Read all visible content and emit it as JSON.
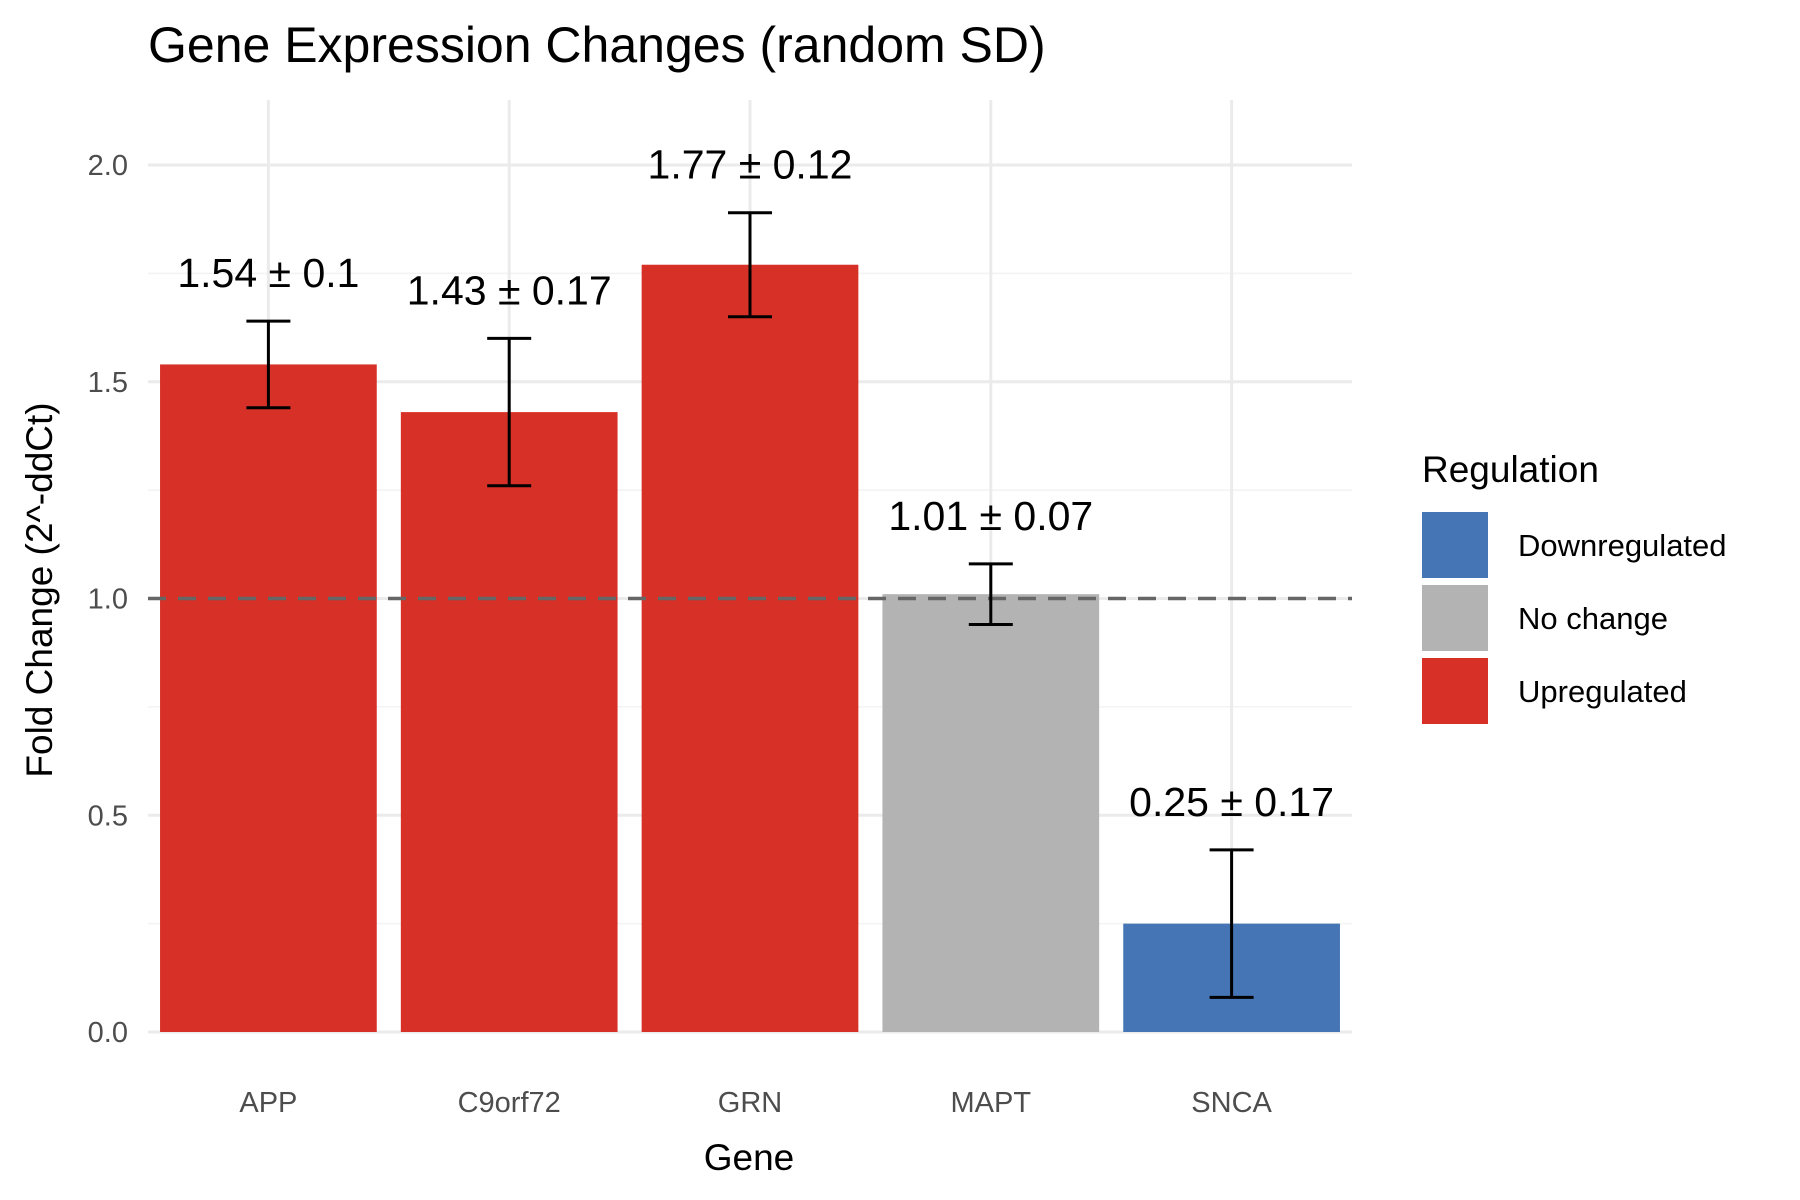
{
  "chart_data": {
    "type": "bar",
    "title": "Gene Expression Changes (random SD)",
    "xlabel": "Gene",
    "ylabel": "Fold Change (2^-ddCt)",
    "ylim": [
      0,
      2.15
    ],
    "yticks": [
      0.0,
      0.5,
      1.0,
      1.5,
      2.0
    ],
    "ytick_labels": [
      "0.0",
      "0.5",
      "1.0",
      "1.5",
      "2.0"
    ],
    "grid": true,
    "reference_line": {
      "y": 1.0,
      "style": "dashed",
      "color": "#666666"
    },
    "categories": [
      "APP",
      "C9orf72",
      "GRN",
      "MAPT",
      "SNCA"
    ],
    "values": [
      1.54,
      1.43,
      1.77,
      1.01,
      0.25
    ],
    "sd": [
      0.1,
      0.17,
      0.12,
      0.07,
      0.17
    ],
    "labels": [
      "1.54 ± 0.1",
      "1.43 ± 0.17",
      "1.77 ± 0.12",
      "1.01 ± 0.07",
      "0.25 ± 0.17"
    ],
    "regulation": [
      "Upregulated",
      "Upregulated",
      "Upregulated",
      "No change",
      "Downregulated"
    ],
    "legend": {
      "title": "Regulation",
      "placement": "right",
      "entries": [
        {
          "label": "Downregulated",
          "color": "#4575b4"
        },
        {
          "label": "No change",
          "color": "#b3b3b3"
        },
        {
          "label": "Upregulated",
          "color": "#d73027"
        }
      ]
    }
  }
}
